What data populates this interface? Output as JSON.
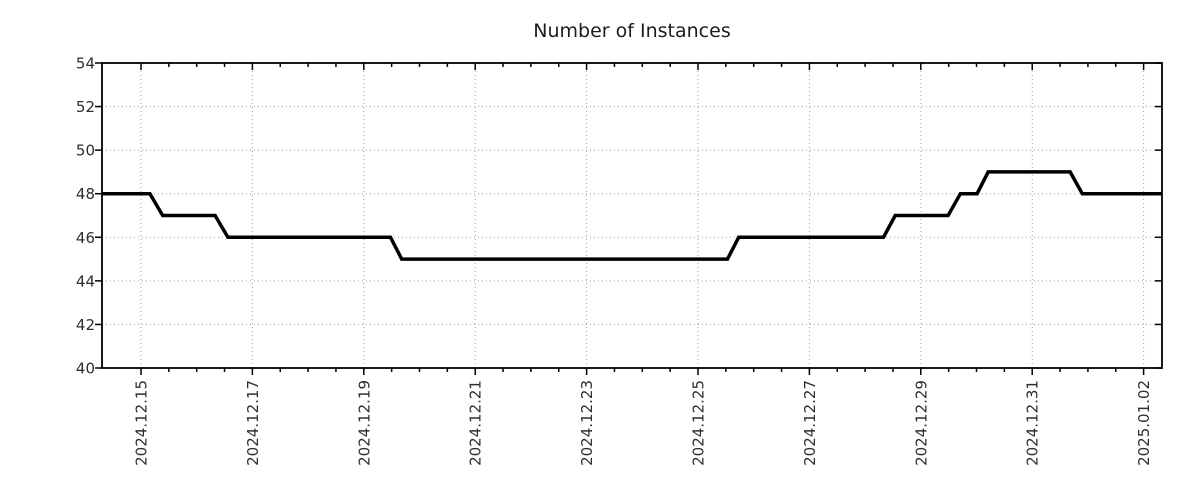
{
  "page": {
    "background_color": "#ffffff"
  },
  "chart_data": {
    "type": "line",
    "title": "Number of Instances",
    "title_color": "#1c1c1c",
    "line_color": "#000000",
    "line_width": 3.5,
    "axis_color": "#000000",
    "grid_color": "#9e9e9e",
    "grid_style": "dotted",
    "tick_label_color": "#2e2e2e",
    "legend": "none",
    "xlabel": "",
    "ylabel": "",
    "ylim": [
      40,
      54
    ],
    "y_ticks": [
      40,
      42,
      44,
      46,
      48,
      50,
      52,
      54
    ],
    "x_domain_days": [
      14.3,
      33.33
    ],
    "x_minor_tick_step_days": 0.5,
    "x_ticks": [
      {
        "day": 15,
        "label": "2024.12.15"
      },
      {
        "day": 17,
        "label": "2024.12.17"
      },
      {
        "day": 19,
        "label": "2024.12.19"
      },
      {
        "day": 21,
        "label": "2024.12.21"
      },
      {
        "day": 23,
        "label": "2024.12.23"
      },
      {
        "day": 25,
        "label": "2024.12.25"
      },
      {
        "day": 27,
        "label": "2024.12.27"
      },
      {
        "day": 29,
        "label": "2024.12.29"
      },
      {
        "day": 31,
        "label": "2024.12.31"
      },
      {
        "day": 33,
        "label": "2025.01.02"
      }
    ],
    "x_tick_note": "day 15 = 2024-12-15 ... day 33 = 2025-01-02, minor ticks every 12 hours",
    "series": [
      {
        "name": "Number of Instances",
        "points": [
          [
            14.3,
            48
          ],
          [
            15.16,
            48
          ],
          [
            15.39,
            47
          ],
          [
            16.33,
            47
          ],
          [
            16.56,
            46
          ],
          [
            19.48,
            46
          ],
          [
            19.68,
            45
          ],
          [
            25.53,
            45
          ],
          [
            25.73,
            46
          ],
          [
            28.33,
            46
          ],
          [
            28.54,
            47
          ],
          [
            29.49,
            47
          ],
          [
            29.71,
            48
          ],
          [
            30.01,
            48
          ],
          [
            30.21,
            49
          ],
          [
            31.68,
            49
          ],
          [
            31.9,
            48
          ],
          [
            33.33,
            48
          ]
        ]
      }
    ]
  }
}
